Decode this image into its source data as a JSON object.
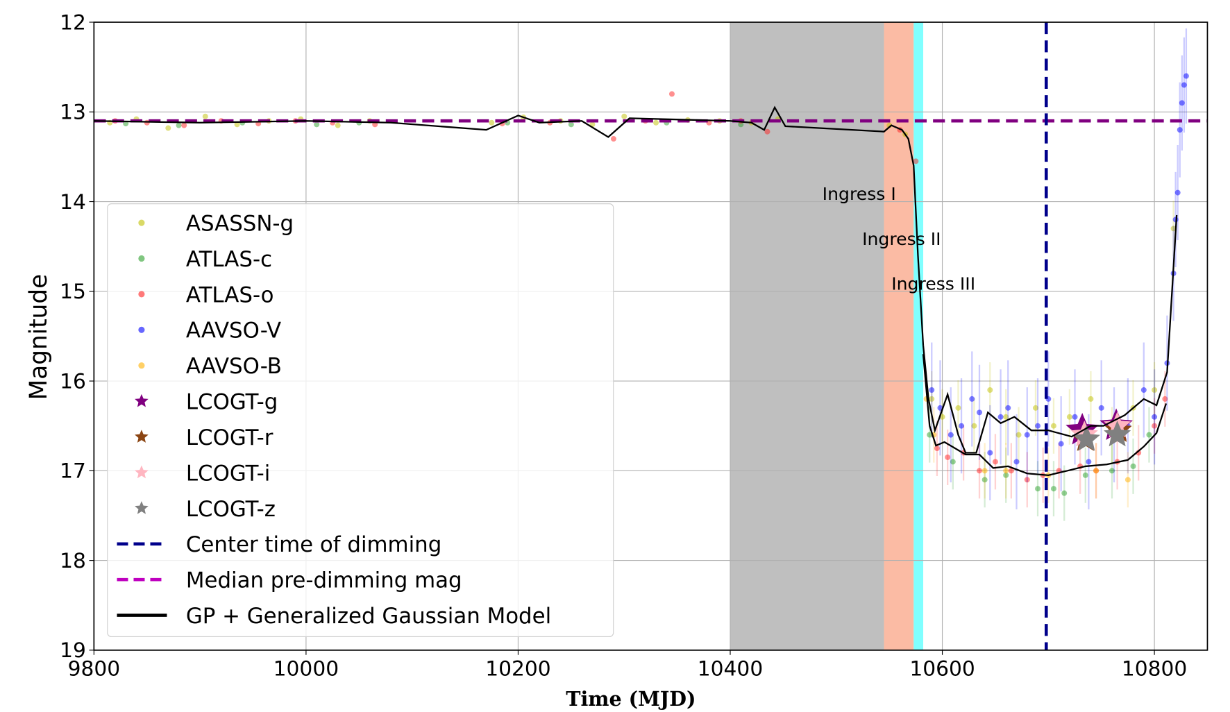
{
  "chart_data": {
    "type": "scatter",
    "xlabel": "Time (MJD)",
    "ylabel": "Magnitude",
    "xlim": [
      9800,
      10850
    ],
    "ylim": [
      19,
      12
    ],
    "y_inverted": true,
    "xticks": [
      "9800",
      "10000",
      "10200",
      "10400",
      "10600",
      "10800"
    ],
    "yticks": [
      "12",
      "13",
      "14",
      "15",
      "16",
      "17",
      "18",
      "19"
    ],
    "grid": true,
    "legend_placement": "lower-left",
    "shaded_regions": [
      {
        "x0": 10400,
        "x1": 10545,
        "color": "#bfbfbf"
      },
      {
        "x0": 10545,
        "x1": 10573,
        "color": "#fbbba4"
      },
      {
        "x0": 10573,
        "x1": 10582,
        "color": "#80ffff"
      }
    ],
    "annotations": [
      {
        "text": "Ingress I",
        "x": 10550,
        "y": 14.0
      },
      {
        "text": "Ingress II",
        "x": 10590,
        "y": 14.5
      },
      {
        "text": "Ingress III",
        "x": 10620,
        "y": 15.0
      }
    ],
    "center_time": {
      "name": "Center time of dimming",
      "x": 10698,
      "color": "#00008b"
    },
    "median_mag": {
      "name": "Median pre-dimming mag",
      "y": 13.1,
      "color": "#800080",
      "legend_color": "#bf00bf"
    },
    "model": {
      "name": "GP + Generalized Gaussian Model",
      "color": "#000000",
      "curves": [
        [
          [
            9800,
            13.1
          ],
          [
            9900,
            13.12
          ],
          [
            10000,
            13.1
          ],
          [
            10080,
            13.12
          ],
          [
            10170,
            13.2
          ],
          [
            10200,
            13.04
          ],
          [
            10220,
            13.12
          ],
          [
            10260,
            13.1
          ],
          [
            10285,
            13.28
          ],
          [
            10305,
            13.07
          ],
          [
            10400,
            13.1
          ],
          [
            10420,
            13.12
          ],
          [
            10432,
            13.2
          ],
          [
            10442,
            12.95
          ],
          [
            10452,
            13.16
          ],
          [
            10545,
            13.22
          ],
          [
            10552,
            13.15
          ],
          [
            10562,
            13.2
          ],
          [
            10568,
            13.3
          ],
          [
            10573,
            13.6
          ],
          [
            10577,
            14.6
          ],
          [
            10582,
            15.6
          ],
          [
            10587,
            16.2
          ],
          [
            10593,
            16.55
          ],
          [
            10605,
            16.15
          ],
          [
            10615,
            16.6
          ],
          [
            10622,
            16.8
          ],
          [
            10632,
            16.8
          ],
          [
            10643,
            16.35
          ],
          [
            10655,
            16.47
          ],
          [
            10668,
            16.4
          ],
          [
            10684,
            16.55
          ],
          [
            10700,
            16.55
          ],
          [
            10722,
            16.62
          ],
          [
            10740,
            16.5
          ],
          [
            10752,
            16.5
          ],
          [
            10772,
            16.38
          ],
          [
            10790,
            16.2
          ],
          [
            10802,
            16.27
          ],
          [
            10812,
            15.9
          ],
          [
            10821,
            14.15
          ]
        ],
        [
          [
            10582,
            15.7
          ],
          [
            10588,
            16.5
          ],
          [
            10594,
            16.72
          ],
          [
            10602,
            16.68
          ],
          [
            10612,
            16.75
          ],
          [
            10622,
            16.82
          ],
          [
            10635,
            16.82
          ],
          [
            10648,
            16.97
          ],
          [
            10662,
            16.95
          ],
          [
            10680,
            17.03
          ],
          [
            10700,
            17.05
          ],
          [
            10718,
            17.0
          ],
          [
            10735,
            16.95
          ],
          [
            10755,
            16.93
          ],
          [
            10775,
            16.88
          ],
          [
            10790,
            16.73
          ],
          [
            10802,
            16.58
          ],
          [
            10811,
            16.25
          ]
        ]
      ]
    },
    "series": [
      {
        "name": "ASASSN-g",
        "color": "#bfbf00",
        "marker": "circle",
        "points": [
          [
            9815,
            13.12
          ],
          [
            9840,
            13.08
          ],
          [
            9870,
            13.18
          ],
          [
            9905,
            13.05
          ],
          [
            9935,
            13.14
          ],
          [
            9965,
            13.1
          ],
          [
            9995,
            13.08
          ],
          [
            10030,
            13.15
          ],
          [
            10060,
            13.1
          ],
          [
            10175,
            13.12
          ],
          [
            10205,
            13.06
          ],
          [
            10240,
            13.1
          ],
          [
            10270,
            13.14
          ],
          [
            10300,
            13.05
          ],
          [
            10330,
            13.12
          ],
          [
            10360,
            13.09
          ],
          [
            10390,
            13.1
          ],
          [
            10420,
            13.12
          ],
          [
            10445,
            13.08
          ],
          [
            10550,
            13.15
          ],
          [
            10565,
            13.25
          ],
          [
            10590,
            16.2
          ],
          [
            10600,
            16.4
          ],
          [
            10615,
            16.3
          ],
          [
            10630,
            16.5
          ],
          [
            10645,
            16.1
          ],
          [
            10660,
            16.4
          ],
          [
            10672,
            16.6
          ],
          [
            10688,
            16.3
          ],
          [
            10705,
            16.5
          ],
          [
            10720,
            16.4
          ],
          [
            10740,
            16.2
          ],
          [
            10760,
            16.6
          ],
          [
            10780,
            16.3
          ],
          [
            10800,
            16.1
          ],
          [
            10818,
            14.3
          ]
        ]
      },
      {
        "name": "ATLAS-c",
        "color": "#2ca02c",
        "marker": "circle",
        "points": [
          [
            9830,
            13.13
          ],
          [
            9880,
            13.15
          ],
          [
            9940,
            13.12
          ],
          [
            10010,
            13.14
          ],
          [
            10050,
            13.12
          ],
          [
            10190,
            13.12
          ],
          [
            10250,
            13.14
          ],
          [
            10340,
            13.12
          ],
          [
            10410,
            13.14
          ],
          [
            10588,
            16.6
          ],
          [
            10610,
            16.9
          ],
          [
            10640,
            17.1
          ],
          [
            10660,
            17.05
          ],
          [
            10690,
            17.2
          ],
          [
            10705,
            17.2
          ],
          [
            10715,
            17.25
          ],
          [
            10735,
            17.05
          ],
          [
            10760,
            17.0
          ],
          [
            10780,
            16.95
          ],
          [
            10795,
            16.6
          ]
        ]
      },
      {
        "name": "ATLAS-o",
        "color": "#ff2020",
        "marker": "circle",
        "points": [
          [
            9820,
            13.1
          ],
          [
            9850,
            13.12
          ],
          [
            9885,
            13.15
          ],
          [
            9920,
            13.1
          ],
          [
            9955,
            13.13
          ],
          [
            9990,
            13.1
          ],
          [
            10025,
            13.12
          ],
          [
            10065,
            13.14
          ],
          [
            10185,
            13.13
          ],
          [
            10230,
            13.12
          ],
          [
            10290,
            13.3
          ],
          [
            10320,
            13.1
          ],
          [
            10345,
            12.8
          ],
          [
            10380,
            13.12
          ],
          [
            10410,
            13.1
          ],
          [
            10435,
            13.22
          ],
          [
            10560,
            13.2
          ],
          [
            10575,
            13.55
          ],
          [
            10595,
            16.75
          ],
          [
            10605,
            16.85
          ],
          [
            10620,
            16.8
          ],
          [
            10635,
            17.0
          ],
          [
            10650,
            16.9
          ],
          [
            10665,
            17.0
          ],
          [
            10680,
            17.1
          ],
          [
            10695,
            17.05
          ],
          [
            10710,
            17.0
          ],
          [
            10730,
            16.95
          ],
          [
            10745,
            17.0
          ],
          [
            10765,
            16.9
          ],
          [
            10785,
            16.8
          ],
          [
            10800,
            16.5
          ],
          [
            10810,
            16.2
          ]
        ]
      },
      {
        "name": "AAVSO-V",
        "color": "#0000ff",
        "marker": "circle",
        "points": [
          [
            10590,
            16.1
          ],
          [
            10598,
            16.3
          ],
          [
            10608,
            16.6
          ],
          [
            10618,
            16.5
          ],
          [
            10628,
            16.2
          ],
          [
            10635,
            16.35
          ],
          [
            10645,
            16.8
          ],
          [
            10655,
            16.4
          ],
          [
            10662,
            16.3
          ],
          [
            10670,
            16.9
          ],
          [
            10680,
            16.6
          ],
          [
            10690,
            16.5
          ],
          [
            10700,
            16.2
          ],
          [
            10712,
            16.7
          ],
          [
            10725,
            16.4
          ],
          [
            10738,
            16.9
          ],
          [
            10750,
            16.3
          ],
          [
            10762,
            16.6
          ],
          [
            10775,
            16.5
          ],
          [
            10790,
            16.1
          ],
          [
            10800,
            16.4
          ],
          [
            10812,
            15.8
          ],
          [
            10818,
            14.8
          ],
          [
            10820,
            14.2
          ],
          [
            10822,
            13.9
          ],
          [
            10824,
            13.2
          ],
          [
            10826,
            12.9
          ],
          [
            10828,
            12.7
          ],
          [
            10830,
            12.6
          ]
        ]
      },
      {
        "name": "AAVSO-B",
        "color": "#ffb000",
        "marker": "circle",
        "points": [
          [
            10585,
            16.2
          ],
          [
            10592,
            16.6
          ],
          [
            10640,
            17.0
          ],
          [
            10660,
            17.0
          ],
          [
            10700,
            17.05
          ],
          [
            10745,
            17.0
          ],
          [
            10775,
            17.1
          ]
        ]
      },
      {
        "name": "LCOGT-g",
        "color": "#800080",
        "marker": "star",
        "points": [
          [
            10732,
            16.55
          ],
          [
            10764,
            16.5
          ]
        ]
      },
      {
        "name": "LCOGT-r",
        "color": "#8b4513",
        "marker": "star",
        "points": [
          [
            10735,
            16.65
          ],
          [
            10766,
            16.55
          ]
        ]
      },
      {
        "name": "LCOGT-i",
        "color": "#ffb6c1",
        "marker": "star",
        "points": [
          [
            10734,
            16.6
          ],
          [
            10765,
            16.5
          ]
        ]
      },
      {
        "name": "LCOGT-z",
        "color": "#808080",
        "marker": "star",
        "points": [
          [
            10736,
            16.65
          ],
          [
            10765,
            16.6
          ]
        ]
      }
    ]
  }
}
